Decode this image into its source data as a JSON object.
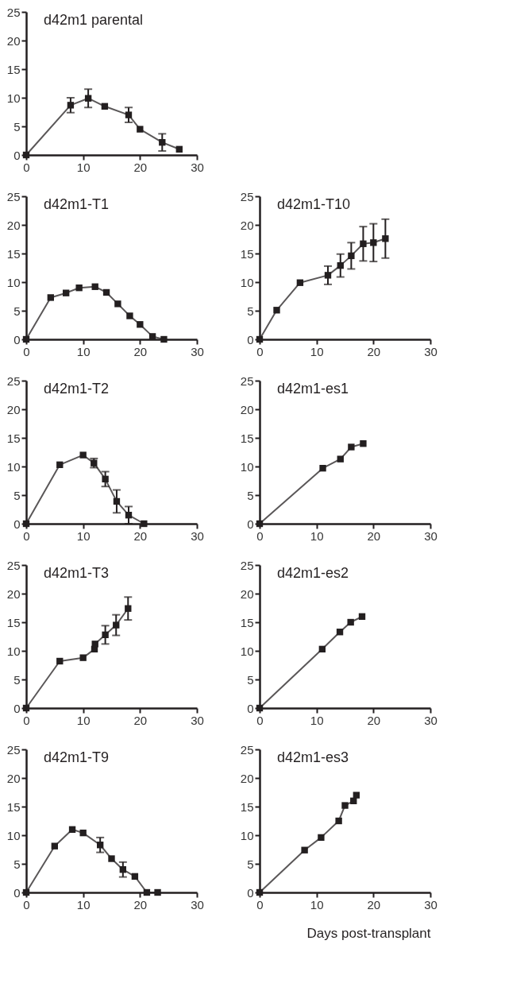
{
  "chart_data": [
    {
      "type": "line",
      "title": "d42m1 parental",
      "marker": "square",
      "color": "#231f20",
      "xlim": [
        0,
        30
      ],
      "xticks": [
        0,
        10,
        20,
        30
      ],
      "ylim": [
        0,
        25
      ],
      "yticks": [
        0,
        5,
        10,
        15,
        20,
        25
      ],
      "grid": false,
      "legend": false,
      "x": [
        0,
        7.8,
        10.9,
        13.8,
        18,
        20,
        23.9,
        26.9
      ],
      "values": [
        0,
        8.7,
        9.9,
        8.5,
        7.0,
        4.5,
        2.2,
        1.0
      ],
      "errors": [
        null,
        1.3,
        1.6,
        null,
        1.3,
        null,
        1.5,
        null
      ]
    },
    {
      "type": "line",
      "title": "d42m1-T1",
      "marker": "square",
      "color": "#231f20",
      "xlim": [
        0,
        30
      ],
      "xticks": [
        0,
        10,
        20,
        30
      ],
      "ylim": [
        0,
        25
      ],
      "yticks": [
        0,
        5,
        10,
        15,
        20,
        25
      ],
      "grid": false,
      "legend": false,
      "x": [
        0,
        4.3,
        7.0,
        9.3,
        12.1,
        14.1,
        16.1,
        18.2,
        20,
        22.2,
        24.2
      ],
      "values": [
        0,
        7.3,
        8.1,
        9.0,
        9.2,
        8.2,
        6.2,
        4.1,
        2.6,
        0.5,
        0
      ]
    },
    {
      "type": "line",
      "title": "d42m1-T10",
      "marker": "square",
      "color": "#231f20",
      "xlim": [
        0,
        30
      ],
      "xticks": [
        0,
        10,
        20,
        30
      ],
      "ylim": [
        0,
        25
      ],
      "yticks": [
        0,
        5,
        10,
        15,
        20,
        25
      ],
      "grid": false,
      "legend": false,
      "x": [
        0,
        3,
        7.1,
        12,
        14.2,
        16.1,
        18.2,
        20,
        22.1
      ],
      "values": [
        0,
        5.1,
        9.9,
        11.2,
        12.9,
        14.6,
        16.7,
        16.9,
        17.6
      ],
      "errors": [
        null,
        null,
        null,
        1.6,
        2.0,
        2.3,
        3.0,
        3.3,
        3.4
      ]
    },
    {
      "type": "line",
      "title": "d42m1-T2",
      "marker": "square",
      "color": "#231f20",
      "xlim": [
        0,
        30
      ],
      "xticks": [
        0,
        10,
        20,
        30
      ],
      "ylim": [
        0,
        25
      ],
      "yticks": [
        0,
        5,
        10,
        15,
        20,
        25
      ],
      "grid": false,
      "legend": false,
      "x": [
        0,
        5.9,
        10,
        11.9,
        13.9,
        15.9,
        18,
        20.7
      ],
      "values": [
        0,
        10.3,
        12.0,
        10.6,
        7.8,
        3.9,
        1.5,
        0
      ],
      "errors": [
        null,
        null,
        null,
        0.8,
        1.3,
        2.0,
        1.5,
        null
      ]
    },
    {
      "type": "line",
      "title": "d42m1-es1",
      "marker": "square",
      "color": "#231f20",
      "xlim": [
        0,
        30
      ],
      "xticks": [
        0,
        10,
        20,
        30
      ],
      "ylim": [
        0,
        25
      ],
      "yticks": [
        0,
        5,
        10,
        15,
        20,
        25
      ],
      "grid": false,
      "legend": false,
      "x": [
        0,
        11.1,
        14.2,
        16.1,
        18.2
      ],
      "values": [
        0,
        9.7,
        11.3,
        13.4,
        14.0
      ]
    },
    {
      "type": "line",
      "title": "d42m1-T3",
      "marker": "square",
      "color": "#231f20",
      "xlim": [
        0,
        30
      ],
      "xticks": [
        0,
        10,
        20,
        30
      ],
      "ylim": [
        0,
        25
      ],
      "yticks": [
        0,
        5,
        10,
        15,
        20,
        25
      ],
      "grid": false,
      "legend": false,
      "x": [
        0,
        5.9,
        10,
        12,
        12.1,
        13.9,
        15.8,
        17.9
      ],
      "values": [
        0,
        8.2,
        8.8,
        10.3,
        11.2,
        12.8,
        14.5,
        17.4
      ],
      "errors": [
        null,
        null,
        null,
        null,
        null,
        1.6,
        1.8,
        2.0
      ]
    },
    {
      "type": "line",
      "title": "d42m1-es2",
      "marker": "square",
      "color": "#231f20",
      "xlim": [
        0,
        30
      ],
      "xticks": [
        0,
        10,
        20,
        30
      ],
      "ylim": [
        0,
        25
      ],
      "yticks": [
        0,
        5,
        10,
        15,
        20,
        25
      ],
      "grid": false,
      "legend": false,
      "x": [
        0,
        11,
        14.1,
        16,
        18
      ],
      "values": [
        0,
        10.3,
        13.3,
        15.0,
        16.0
      ]
    },
    {
      "type": "line",
      "title": "d42m1-T9",
      "marker": "square",
      "color": "#231f20",
      "xlim": [
        0,
        30
      ],
      "xticks": [
        0,
        10,
        20,
        30
      ],
      "ylim": [
        0,
        25
      ],
      "yticks": [
        0,
        5,
        10,
        15,
        20,
        25
      ],
      "grid": false,
      "legend": false,
      "x": [
        0,
        5,
        8.1,
        10,
        13,
        15,
        17,
        19.1,
        21.2,
        23.1
      ],
      "values": [
        0,
        8.1,
        11.0,
        10.4,
        8.3,
        5.9,
        4.0,
        2.8,
        0,
        0
      ],
      "errors": [
        null,
        null,
        null,
        null,
        1.3,
        null,
        1.3,
        null,
        null,
        null
      ]
    },
    {
      "type": "line",
      "title": "d42m1-es3",
      "xlabel": "Days post-transplant",
      "marker": "square",
      "color": "#231f20",
      "xlim": [
        0,
        30
      ],
      "xticks": [
        0,
        10,
        20,
        30
      ],
      "ylim": [
        0,
        25
      ],
      "yticks": [
        0,
        5,
        10,
        15,
        20,
        25
      ],
      "grid": false,
      "legend": false,
      "x": [
        0,
        7.9,
        10.8,
        13.9,
        15,
        16.5,
        17
      ],
      "values": [
        0,
        7.4,
        9.6,
        12.5,
        15.2,
        16,
        17
      ]
    }
  ]
}
